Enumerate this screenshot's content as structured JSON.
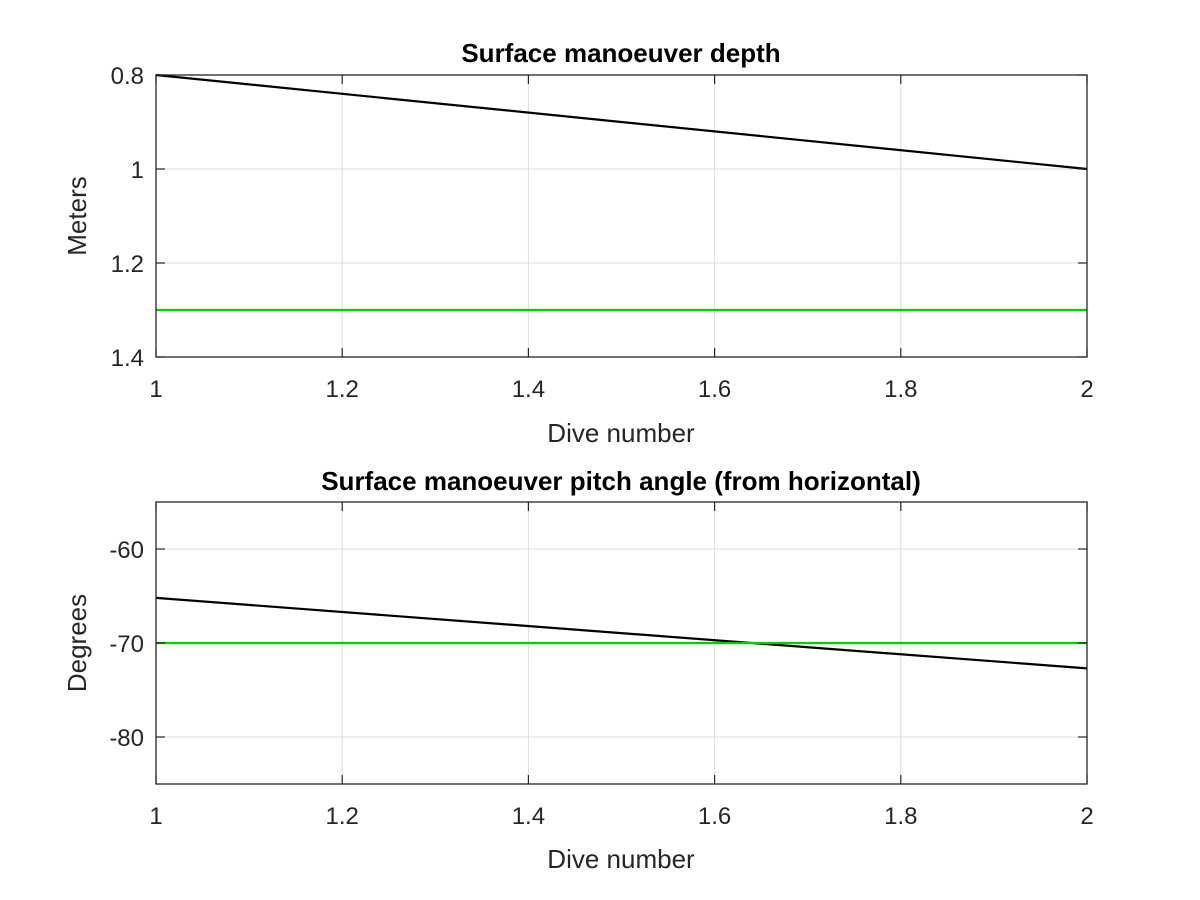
{
  "chart_data": [
    {
      "type": "line",
      "title": "Surface manoeuver depth",
      "xlabel": "Dive number",
      "ylabel": "Meters",
      "xlim": [
        1,
        2
      ],
      "ylim": [
        0.8,
        1.4
      ],
      "y_reversed": true,
      "grid": true,
      "x_ticks": [
        1,
        1.2,
        1.4,
        1.6,
        1.8,
        2
      ],
      "x_tick_labels": [
        "1",
        "1.2",
        "1.4",
        "1.6",
        "1.8",
        "2"
      ],
      "y_ticks": [
        0.8,
        1,
        1.2,
        1.4
      ],
      "y_tick_labels": [
        "0.8",
        "1",
        "1.2",
        "1.4"
      ],
      "series": [
        {
          "x": [
            1,
            2
          ],
          "y": [
            0.8,
            1.0
          ],
          "color": "#000000"
        },
        {
          "x": [
            1,
            2
          ],
          "y": [
            1.3,
            1.3
          ],
          "color": "#00cc00"
        }
      ]
    },
    {
      "type": "line",
      "title": "Surface manoeuver pitch angle (from horizontal)",
      "xlabel": "Dive number",
      "ylabel": "Degrees",
      "xlim": [
        1,
        2
      ],
      "ylim": [
        -85,
        -55
      ],
      "y_reversed": false,
      "grid": true,
      "x_ticks": [
        1,
        1.2,
        1.4,
        1.6,
        1.8,
        2
      ],
      "x_tick_labels": [
        "1",
        "1.2",
        "1.4",
        "1.6",
        "1.8",
        "2"
      ],
      "y_ticks": [
        -80,
        -70,
        -60
      ],
      "y_tick_labels": [
        "-80",
        "-70",
        "-60"
      ],
      "series": [
        {
          "x": [
            1,
            2
          ],
          "y": [
            -65.2,
            -72.7
          ],
          "color": "#000000"
        },
        {
          "x": [
            1,
            2
          ],
          "y": [
            -70,
            -70
          ],
          "color": "#00cc00"
        }
      ]
    }
  ]
}
